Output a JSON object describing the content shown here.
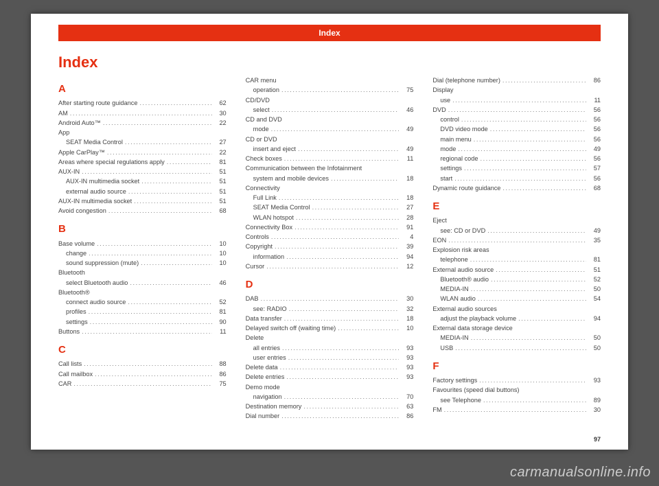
{
  "watermark": "carmanualsonline.info",
  "header": {
    "text": "Index",
    "bg": "#e53012"
  },
  "title": "Index",
  "pageNumber": "97",
  "columns": [
    {
      "blocks": [
        {
          "type": "letter",
          "text": "A"
        },
        {
          "type": "entry",
          "label": "After starting route guidance",
          "page": "62"
        },
        {
          "type": "entry",
          "label": "AM",
          "page": "30"
        },
        {
          "type": "entry",
          "label": "Android Auto™",
          "page": "22"
        },
        {
          "type": "heading",
          "label": "App"
        },
        {
          "type": "entry",
          "sub": true,
          "label": "SEAT Media Control",
          "page": "27"
        },
        {
          "type": "entry",
          "label": "Apple CarPlay™",
          "page": "22"
        },
        {
          "type": "entry",
          "label": "Areas where special regulations apply",
          "page": "81"
        },
        {
          "type": "entry",
          "label": "AUX-IN",
          "page": "51"
        },
        {
          "type": "entry",
          "sub": true,
          "label": "AUX-IN multimedia socket",
          "page": "51"
        },
        {
          "type": "entry",
          "sub": true,
          "label": "external audio source",
          "page": "51"
        },
        {
          "type": "entry",
          "label": "AUX-IN multimedia socket",
          "page": "51"
        },
        {
          "type": "entry",
          "label": "Avoid congestion",
          "page": "68"
        },
        {
          "type": "letter",
          "text": "B"
        },
        {
          "type": "entry",
          "label": "Base volume",
          "page": "10"
        },
        {
          "type": "entry",
          "sub": true,
          "label": "change",
          "page": "10"
        },
        {
          "type": "entry",
          "sub": true,
          "label": "sound suppression (mute)",
          "page": "10"
        },
        {
          "type": "heading",
          "label": "Bluetooth"
        },
        {
          "type": "entry",
          "sub": true,
          "label": "select Bluetooth audio",
          "page": "46"
        },
        {
          "type": "heading",
          "label": "Bluetooth®"
        },
        {
          "type": "entry",
          "sub": true,
          "label": "connect audio source",
          "page": "52"
        },
        {
          "type": "entry",
          "sub": true,
          "label": "profiles",
          "page": "81"
        },
        {
          "type": "entry",
          "sub": true,
          "label": "settings",
          "page": "90"
        },
        {
          "type": "entry",
          "label": "Buttons",
          "page": "11"
        },
        {
          "type": "letter",
          "text": "C"
        },
        {
          "type": "entry",
          "label": "Call lists",
          "page": "88"
        },
        {
          "type": "entry",
          "label": "Call mailbox",
          "page": "86"
        },
        {
          "type": "entry",
          "label": "CAR",
          "page": "75"
        }
      ]
    },
    {
      "blocks": [
        {
          "type": "heading",
          "label": "CAR menu"
        },
        {
          "type": "entry",
          "sub": true,
          "label": "operation",
          "page": "75"
        },
        {
          "type": "heading",
          "label": "CD/DVD"
        },
        {
          "type": "entry",
          "sub": true,
          "label": "select",
          "page": "46"
        },
        {
          "type": "heading",
          "label": "CD and DVD"
        },
        {
          "type": "entry",
          "sub": true,
          "label": "mode",
          "page": "49"
        },
        {
          "type": "heading",
          "label": "CD or DVD"
        },
        {
          "type": "entry",
          "sub": true,
          "label": "insert and eject",
          "page": "49"
        },
        {
          "type": "entry",
          "label": "Check boxes",
          "page": "11"
        },
        {
          "type": "heading",
          "label": "Communication between the Infotainment"
        },
        {
          "type": "entry",
          "sub": true,
          "label": "system and mobile devices",
          "page": "18"
        },
        {
          "type": "heading",
          "label": "Connectivity"
        },
        {
          "type": "entry",
          "sub": true,
          "label": "Full Link",
          "page": "18"
        },
        {
          "type": "entry",
          "sub": true,
          "label": "SEAT Media Control",
          "page": "27"
        },
        {
          "type": "entry",
          "sub": true,
          "label": "WLAN hotspot",
          "page": "28"
        },
        {
          "type": "entry",
          "label": "Connectivity Box",
          "page": "91"
        },
        {
          "type": "entry",
          "label": "Controls",
          "page": "4"
        },
        {
          "type": "entry",
          "label": "Copyright",
          "page": "39"
        },
        {
          "type": "entry",
          "sub": true,
          "label": "information",
          "page": "94"
        },
        {
          "type": "entry",
          "label": "Cursor",
          "page": "12"
        },
        {
          "type": "letter",
          "text": "D"
        },
        {
          "type": "entry",
          "label": "DAB",
          "page": "30"
        },
        {
          "type": "entry",
          "sub": true,
          "label": "see: RADIO",
          "page": "32"
        },
        {
          "type": "entry",
          "label": "Data transfer",
          "page": "18"
        },
        {
          "type": "entry",
          "label": "Delayed switch off (waiting time)",
          "page": "10"
        },
        {
          "type": "heading",
          "label": "Delete"
        },
        {
          "type": "entry",
          "sub": true,
          "label": "all entries",
          "page": "93"
        },
        {
          "type": "entry",
          "sub": true,
          "label": "user entries",
          "page": "93"
        },
        {
          "type": "entry",
          "label": "Delete data",
          "page": "93"
        },
        {
          "type": "entry",
          "label": "Delete entries",
          "page": "93"
        },
        {
          "type": "heading",
          "label": "Demo mode"
        },
        {
          "type": "entry",
          "sub": true,
          "label": "navigation",
          "page": "70"
        },
        {
          "type": "entry",
          "label": "Destination memory",
          "page": "63"
        },
        {
          "type": "entry",
          "label": "Dial number",
          "page": "86"
        }
      ]
    },
    {
      "blocks": [
        {
          "type": "entry",
          "label": "Dial (telephone number)",
          "page": "86"
        },
        {
          "type": "heading",
          "label": "Display"
        },
        {
          "type": "entry",
          "sub": true,
          "label": "use",
          "page": "11"
        },
        {
          "type": "entry",
          "label": "DVD",
          "page": "56"
        },
        {
          "type": "entry",
          "sub": true,
          "label": "control",
          "page": "56"
        },
        {
          "type": "entry",
          "sub": true,
          "label": "DVD video mode",
          "page": "56"
        },
        {
          "type": "entry",
          "sub": true,
          "label": "main menu",
          "page": "56"
        },
        {
          "type": "entry",
          "sub": true,
          "label": "mode",
          "page": "49"
        },
        {
          "type": "entry",
          "sub": true,
          "label": "regional code",
          "page": "56"
        },
        {
          "type": "entry",
          "sub": true,
          "label": "settings",
          "page": "57"
        },
        {
          "type": "entry",
          "sub": true,
          "label": "start",
          "page": "56"
        },
        {
          "type": "entry",
          "label": "Dynamic route guidance",
          "page": "68"
        },
        {
          "type": "letter",
          "text": "E"
        },
        {
          "type": "heading",
          "label": "Eject"
        },
        {
          "type": "entry",
          "sub": true,
          "label": "see: CD or DVD",
          "page": "49"
        },
        {
          "type": "entry",
          "label": "EON",
          "page": "35"
        },
        {
          "type": "heading",
          "label": "Explosion risk areas"
        },
        {
          "type": "entry",
          "sub": true,
          "label": "telephone",
          "page": "81"
        },
        {
          "type": "entry",
          "label": "External audio source",
          "page": "51"
        },
        {
          "type": "entry",
          "sub": true,
          "label": "Bluetooth® audio",
          "page": "52"
        },
        {
          "type": "entry",
          "sub": true,
          "label": "MEDIA-IN",
          "page": "50"
        },
        {
          "type": "entry",
          "sub": true,
          "label": "WLAN audio",
          "page": "54"
        },
        {
          "type": "heading",
          "label": "External audio sources"
        },
        {
          "type": "entry",
          "sub": true,
          "label": "adjust the playback volume",
          "page": "94"
        },
        {
          "type": "heading",
          "label": "External data storage device"
        },
        {
          "type": "entry",
          "sub": true,
          "label": "MEDIA-IN",
          "page": "50"
        },
        {
          "type": "entry",
          "sub": true,
          "label": "USB",
          "page": "50"
        },
        {
          "type": "letter",
          "text": "F"
        },
        {
          "type": "entry",
          "label": "Factory settings",
          "page": "93"
        },
        {
          "type": "heading",
          "label": "Favourites (speed dial buttons)"
        },
        {
          "type": "entry",
          "sub": true,
          "label": "see Telephone",
          "page": "89"
        },
        {
          "type": "entry",
          "label": "FM",
          "page": "30"
        }
      ]
    }
  ]
}
